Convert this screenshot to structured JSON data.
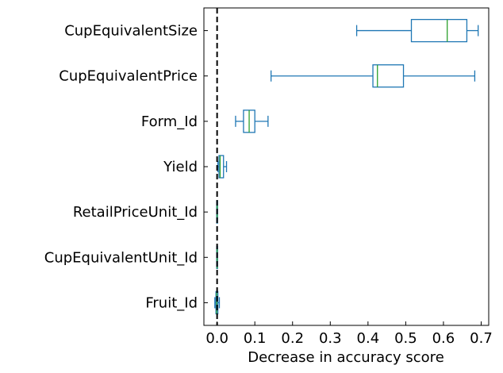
{
  "chart_data": {
    "type": "box",
    "orientation": "horizontal",
    "title": "",
    "xlabel": "Decrease in accuracy score",
    "ylabel": "",
    "xlim": [
      -0.035,
      0.72
    ],
    "xticks": [
      0.0,
      0.1,
      0.2,
      0.3,
      0.4,
      0.5,
      0.6,
      0.7
    ],
    "xtick_labels": [
      "0.0",
      "0.1",
      "0.2",
      "0.3",
      "0.4",
      "0.5",
      "0.6",
      "0.7"
    ],
    "reference_line": {
      "x": 0.0,
      "style": "dashed",
      "color": "#000000"
    },
    "grid": false,
    "categories": [
      "CupEquivalentSize",
      "CupEquivalentPrice",
      "Form_Id",
      "Yield",
      "RetailPriceUnit_Id",
      "CupEquivalentUnit_Id",
      "Fruit_Id"
    ],
    "boxes": [
      {
        "category": "CupEquivalentSize",
        "whisker_low": 0.37,
        "q1": 0.515,
        "median": 0.61,
        "q3": 0.662,
        "whisker_high": 0.692
      },
      {
        "category": "CupEquivalentPrice",
        "whisker_low": 0.143,
        "q1": 0.413,
        "median": 0.425,
        "q3": 0.494,
        "whisker_high": 0.683
      },
      {
        "category": "Form_Id",
        "whisker_low": 0.049,
        "q1": 0.07,
        "median": 0.085,
        "q3": 0.1,
        "whisker_high": 0.135
      },
      {
        "category": "Yield",
        "whisker_low": 0.002,
        "q1": 0.005,
        "median": 0.008,
        "q3": 0.017,
        "whisker_high": 0.025
      },
      {
        "category": "RetailPriceUnit_Id",
        "whisker_low": -0.001,
        "q1": -0.001,
        "median": 0.0,
        "q3": 0.0,
        "whisker_high": 0.0
      },
      {
        "category": "CupEquivalentUnit_Id",
        "whisker_low": -0.001,
        "q1": -0.001,
        "median": 0.0,
        "q3": 0.0,
        "whisker_high": 0.0
      },
      {
        "category": "Fruit_Id",
        "whisker_low": -0.006,
        "q1": -0.003,
        "median": -0.001,
        "q3": 0.002,
        "whisker_high": 0.006
      }
    ],
    "colors": {
      "box": "#1f77b4",
      "median": "#2ca02c",
      "axes": "#000000"
    }
  }
}
